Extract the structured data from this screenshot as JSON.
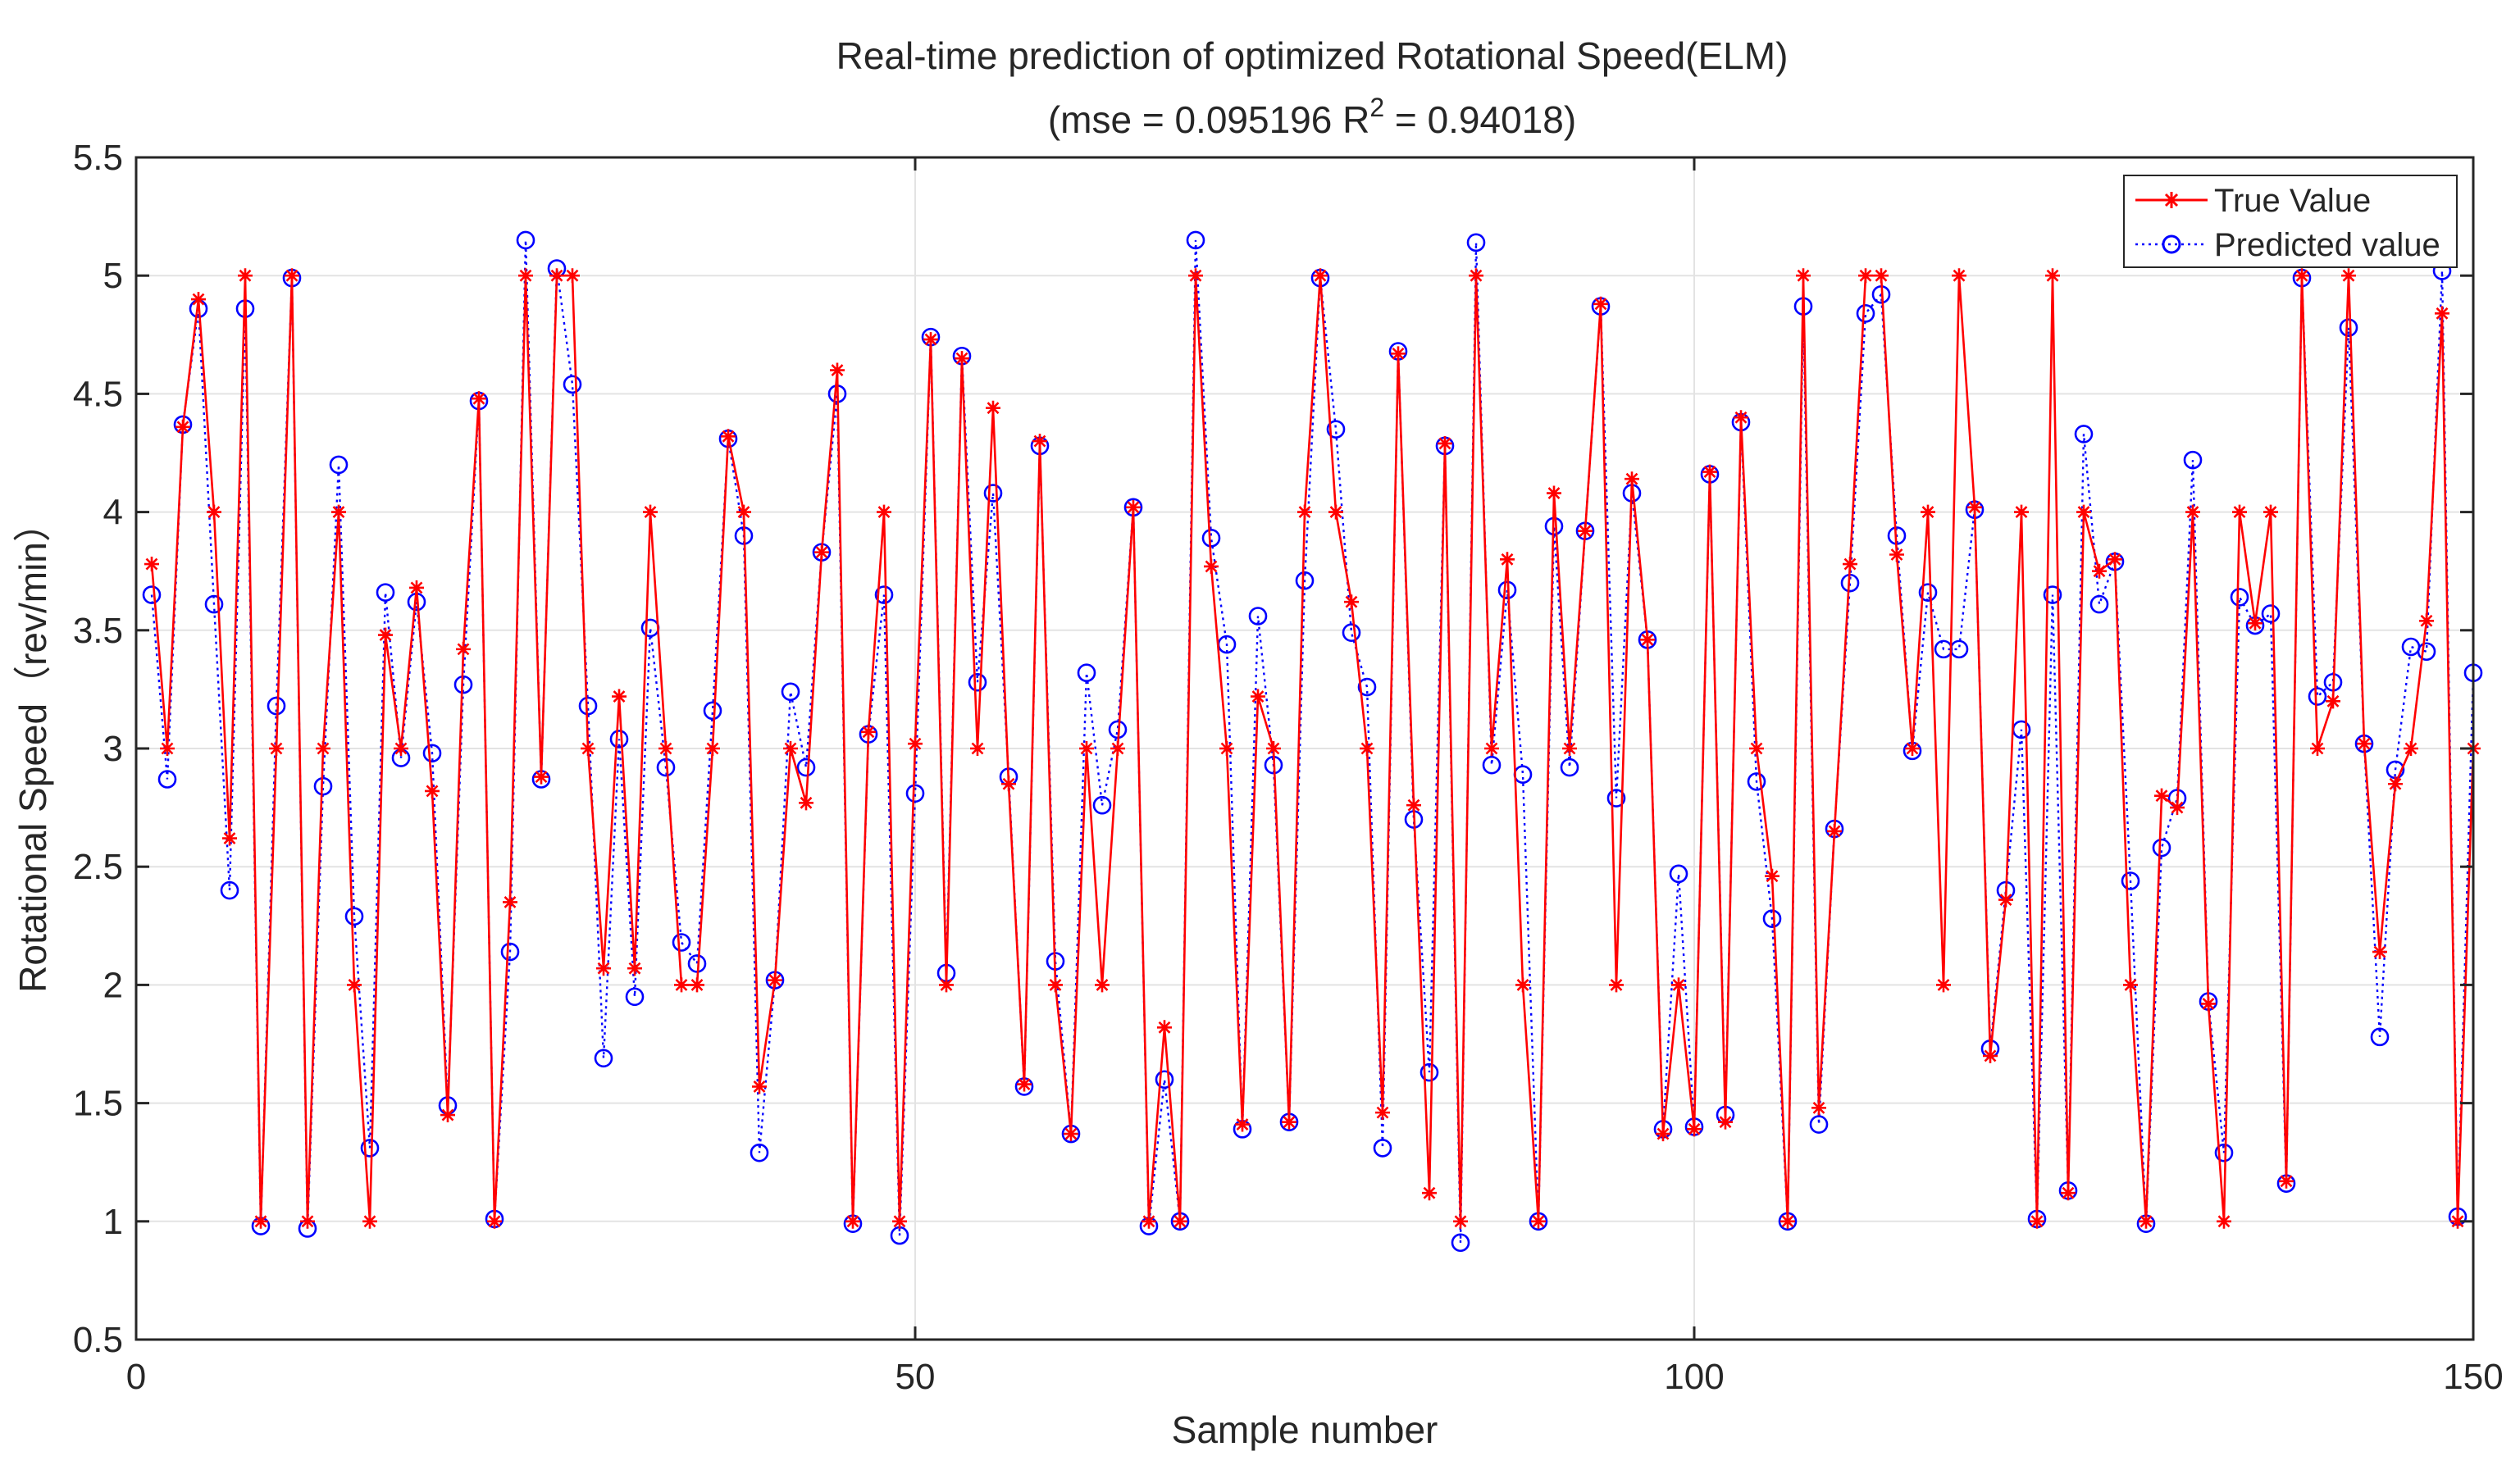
{
  "chart_data": {
    "type": "line",
    "title": "Real-time prediction of optimized Rotational Speed(ELM)",
    "subtitle_prefix": "(mse = 0.095196 R",
    "subtitle_sup": "2",
    "subtitle_suffix": " = 0.94018)",
    "xlabel": "Sample number",
    "ylabel": "Rotational Speed（rev/min）",
    "xlim": [
      0,
      150
    ],
    "ylim": [
      0.5,
      5.5
    ],
    "xticks": [
      0,
      50,
      100,
      150
    ],
    "yticks": [
      0.5,
      1,
      1.5,
      2,
      2.5,
      3,
      3.5,
      4,
      4.5,
      5,
      5.5
    ],
    "xtick_labels": [
      "0",
      "50",
      "100",
      "150"
    ],
    "ytick_labels": [
      "0.5",
      "1",
      "1.5",
      "2",
      "2.5",
      "3",
      "3.5",
      "4",
      "4.5",
      "5",
      "5.5"
    ],
    "grid": true,
    "legend_position": "top-right",
    "series": [
      {
        "name": "True Value",
        "color": "#ff0000",
        "marker": "asterisk",
        "line_style": "solid",
        "values": [
          3.78,
          3.0,
          4.36,
          4.9,
          4.0,
          2.62,
          5.0,
          1.0,
          3.0,
          5.0,
          1.0,
          3.0,
          4.0,
          2.0,
          1.0,
          3.48,
          3.0,
          3.68,
          2.82,
          1.45,
          3.42,
          4.48,
          1.0,
          2.35,
          5.0,
          2.88,
          5.0,
          5.0,
          3.0,
          2.07,
          3.22,
          2.07,
          4.0,
          3.0,
          2.0,
          2.0,
          3.0,
          4.32,
          4.0,
          1.57,
          2.02,
          3.0,
          2.77,
          3.83,
          4.6,
          1.0,
          3.07,
          4.0,
          1.0,
          3.02,
          4.73,
          2.0,
          4.65,
          3.0,
          4.44,
          2.85,
          1.58,
          4.3,
          2.0,
          1.37,
          3.0,
          2.0,
          3.0,
          4.02,
          1.0,
          1.82,
          1.0,
          5.0,
          3.77,
          3.0,
          1.41,
          3.22,
          3.0,
          1.42,
          4.0,
          5.0,
          4.0,
          3.62,
          3.0,
          1.46,
          4.67,
          2.76,
          1.12,
          4.29,
          1.0,
          5.0,
          3.0,
          3.8,
          2.0,
          1.0,
          4.08,
          3.0,
          3.92,
          4.88,
          2.0,
          4.14,
          3.46,
          1.37,
          2.0,
          1.39,
          4.17,
          1.42,
          4.4,
          3.0,
          2.46,
          1.0,
          5.0,
          1.48,
          2.65,
          3.78,
          5.0,
          5.0,
          3.82,
          3.0,
          4.0,
          2.0,
          5.0,
          4.02,
          1.7,
          2.36,
          4.0,
          1.0,
          5.0,
          1.12,
          4.0,
          3.75,
          3.8,
          2.0,
          1.0,
          2.8,
          2.75,
          4.0,
          1.92,
          1.0,
          4.0,
          3.53,
          4.0,
          1.17,
          5.0,
          3.0,
          3.2,
          5.0,
          3.02,
          2.14,
          2.85,
          3.0,
          3.54,
          4.84,
          1.0,
          3.0
        ]
      },
      {
        "name": "Predicted value",
        "color": "#0000ff",
        "marker": "circle",
        "line_style": "dotted",
        "values": [
          3.65,
          2.87,
          4.37,
          4.86,
          3.61,
          2.4,
          4.86,
          0.98,
          3.18,
          4.99,
          0.97,
          2.84,
          4.2,
          2.29,
          1.31,
          3.66,
          2.96,
          3.62,
          2.98,
          1.49,
          3.27,
          4.47,
          1.01,
          2.14,
          5.15,
          2.87,
          5.03,
          4.54,
          3.18,
          1.69,
          3.04,
          1.95,
          3.51,
          2.92,
          2.18,
          2.09,
          3.16,
          4.31,
          3.9,
          1.29,
          2.02,
          3.24,
          2.92,
          3.83,
          4.5,
          0.99,
          3.06,
          3.65,
          0.94,
          2.81,
          4.74,
          2.05,
          4.66,
          3.28,
          4.08,
          2.88,
          1.57,
          4.28,
          2.1,
          1.37,
          3.32,
          2.76,
          3.08,
          4.02,
          0.98,
          1.6,
          1.0,
          5.15,
          3.89,
          3.44,
          1.39,
          3.56,
          2.93,
          1.42,
          3.71,
          4.99,
          4.35,
          3.49,
          3.26,
          1.31,
          4.68,
          2.7,
          1.63,
          4.28,
          0.91,
          5.14,
          2.93,
          3.67,
          2.89,
          1.0,
          3.94,
          2.92,
          3.92,
          4.87,
          2.79,
          4.08,
          3.46,
          1.39,
          2.47,
          1.4,
          4.16,
          1.45,
          4.38,
          2.86,
          2.28,
          1.0,
          4.87,
          1.41,
          2.66,
          3.7,
          4.84,
          4.92,
          3.9,
          2.99,
          3.66,
          3.42,
          3.42,
          4.01,
          1.73,
          2.4,
          3.08,
          1.01,
          3.65,
          1.13,
          4.33,
          3.61,
          3.79,
          2.44,
          0.99,
          2.58,
          2.79,
          4.22,
          1.93,
          1.29,
          3.64,
          3.52,
          3.57,
          1.16,
          4.99,
          3.22,
          3.28,
          4.78,
          3.02,
          1.78,
          2.91,
          3.43,
          3.41,
          5.02,
          1.02,
          3.32
        ]
      }
    ]
  }
}
